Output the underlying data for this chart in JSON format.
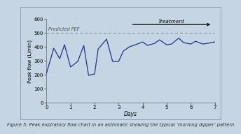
{
  "title": "",
  "xlabel": "Days",
  "ylabel": "Peak flow (L/min)",
  "background_color": "#c5d5e4",
  "plot_bg_color": "#c5d5e4",
  "border_color": "#8899aa",
  "line_color": "#1a3a8a",
  "predicted_pef": 500,
  "predicted_pef_color": "#888888",
  "ylim": [
    0,
    600
  ],
  "xlim": [
    0,
    7
  ],
  "yticks": [
    0,
    100,
    200,
    300,
    400,
    500,
    600
  ],
  "xticks": [
    0,
    1,
    2,
    3,
    4,
    5,
    6,
    7
  ],
  "x_data": [
    0.0,
    0.3,
    0.55,
    0.75,
    1.0,
    1.3,
    1.55,
    1.75,
    2.0,
    2.15,
    2.5,
    2.75,
    3.0,
    3.2,
    3.45,
    3.7,
    4.0,
    4.2,
    4.5,
    4.7,
    5.0,
    5.2,
    5.5,
    5.7,
    6.0,
    6.2,
    6.5,
    6.7,
    7.0
  ],
  "y_data": [
    210,
    390,
    315,
    415,
    255,
    295,
    410,
    195,
    205,
    385,
    455,
    295,
    295,
    370,
    400,
    415,
    435,
    410,
    425,
    450,
    415,
    420,
    462,
    430,
    420,
    440,
    420,
    425,
    435
  ],
  "treatment_start_x": 3.5,
  "treatment_end_x": 6.9,
  "treatment_y": 560,
  "predicted_pef_label": "Predicted PEF",
  "treatment_label": "Treatment",
  "caption": "Figure 5. Peak expiratory flow chart in an asthmatic showing the typical ‘morning dipper’ pattern",
  "caption_fontsize": 4.8,
  "axis_fontsize": 5.5,
  "label_fontsize": 5.5,
  "tick_fontsize": 5.0
}
